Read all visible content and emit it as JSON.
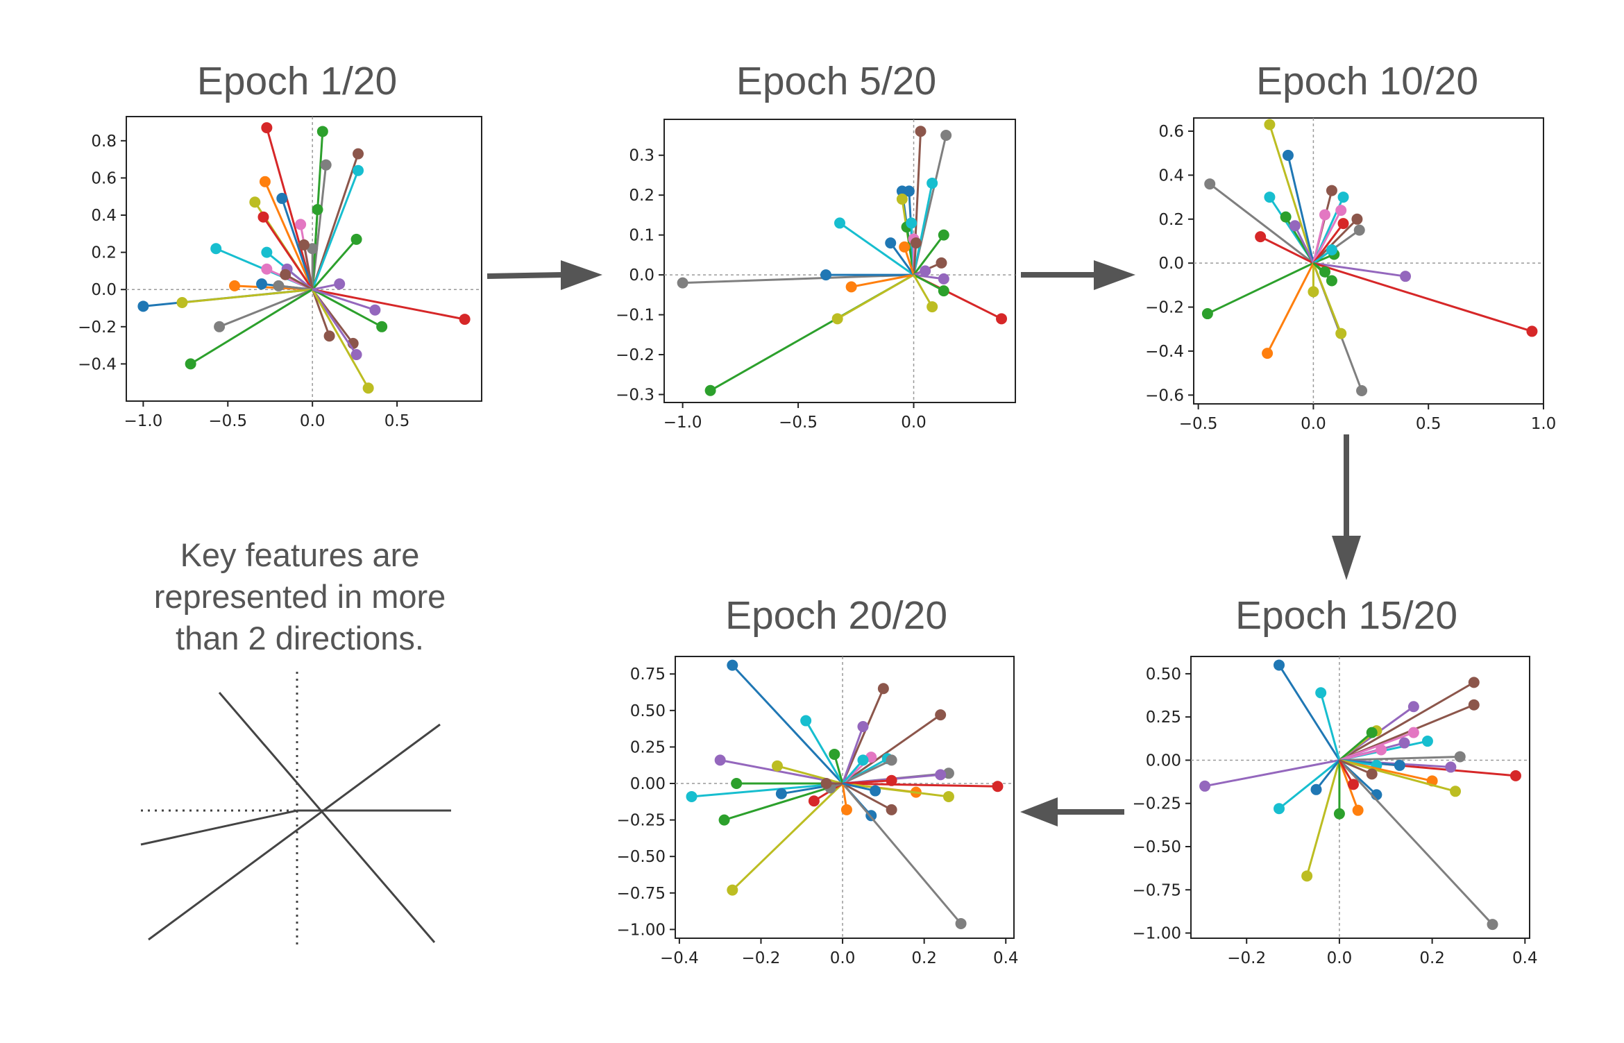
{
  "figure": {
    "arrow_color": "#555555",
    "note_lines": [
      "Key features are",
      "represented in more",
      "than 2 directions."
    ]
  },
  "palette": [
    "#1f77b4",
    "#ff7f0e",
    "#2ca02c",
    "#d62728",
    "#9467bd",
    "#8c564b",
    "#e377c2",
    "#7f7f7f",
    "#bcbd22",
    "#17becf"
  ],
  "chart_data": [
    {
      "type": "scatter",
      "title": "Epoch 1/20",
      "xlim": [
        -1.1,
        1.0
      ],
      "ylim": [
        -0.6,
        0.93
      ],
      "xticks": [
        -1.0,
        -0.5,
        0.0,
        0.5
      ],
      "yticks": [
        -0.4,
        -0.2,
        0.0,
        0.2,
        0.4,
        0.6,
        0.8
      ],
      "ytick_decimals": 1,
      "grid": false,
      "zero_lines": true,
      "vectors": [
        [
          -1.0,
          -0.09,
          0
        ],
        [
          0.9,
          -0.16,
          3
        ],
        [
          -0.27,
          0.87,
          3
        ],
        [
          0.06,
          0.85,
          2
        ],
        [
          0.27,
          0.73,
          5
        ],
        [
          0.08,
          0.67,
          7
        ],
        [
          0.27,
          0.64,
          9
        ],
        [
          -0.28,
          0.58,
          1
        ],
        [
          -0.34,
          0.47,
          8
        ],
        [
          -0.18,
          0.49,
          0
        ],
        [
          -0.29,
          0.39,
          3
        ],
        [
          0.03,
          0.43,
          2
        ],
        [
          -0.07,
          0.35,
          6
        ],
        [
          0.26,
          0.27,
          2
        ],
        [
          -0.57,
          0.22,
          9
        ],
        [
          -0.27,
          0.2,
          9
        ],
        [
          0.0,
          0.22,
          7
        ],
        [
          -0.05,
          0.24,
          5
        ],
        [
          -0.15,
          0.11,
          4
        ],
        [
          -0.27,
          0.11,
          6
        ],
        [
          -0.16,
          0.08,
          5
        ],
        [
          -0.46,
          0.02,
          1
        ],
        [
          -0.3,
          0.03,
          0
        ],
        [
          -0.2,
          0.02,
          7
        ],
        [
          0.16,
          0.03,
          4
        ],
        [
          -0.77,
          -0.07,
          8
        ],
        [
          -0.55,
          -0.2,
          7
        ],
        [
          -0.72,
          -0.4,
          2
        ],
        [
          0.1,
          -0.25,
          5
        ],
        [
          0.24,
          -0.29,
          5
        ],
        [
          0.26,
          -0.35,
          4
        ],
        [
          0.33,
          -0.53,
          8
        ],
        [
          0.41,
          -0.2,
          2
        ],
        [
          0.37,
          -0.11,
          4
        ]
      ]
    },
    {
      "type": "scatter",
      "title": "Epoch 5/20",
      "xlim": [
        -1.08,
        0.44
      ],
      "ylim": [
        -0.32,
        0.39
      ],
      "xticks": [
        -1.0,
        -0.5,
        0.0
      ],
      "yticks": [
        -0.3,
        -0.2,
        -0.1,
        0.0,
        0.1,
        0.2,
        0.3
      ],
      "ytick_decimals": 1,
      "grid": false,
      "zero_lines": true,
      "vectors": [
        [
          -1.0,
          -0.02,
          7
        ],
        [
          -0.88,
          -0.29,
          2
        ],
        [
          -0.38,
          0.0,
          0
        ],
        [
          -0.33,
          -0.11,
          8
        ],
        [
          -0.27,
          -0.03,
          1
        ],
        [
          -0.32,
          0.13,
          9
        ],
        [
          0.38,
          -0.11,
          3
        ],
        [
          0.03,
          0.36,
          5
        ],
        [
          0.14,
          0.35,
          7
        ],
        [
          0.08,
          0.23,
          9
        ],
        [
          -0.05,
          0.21,
          0
        ],
        [
          -0.02,
          0.21,
          0
        ],
        [
          -0.05,
          0.19,
          8
        ],
        [
          -0.03,
          0.12,
          2
        ],
        [
          -0.01,
          0.13,
          9
        ],
        [
          0.0,
          0.09,
          6
        ],
        [
          0.01,
          0.08,
          5
        ],
        [
          -0.1,
          0.08,
          0
        ],
        [
          -0.04,
          0.07,
          1
        ],
        [
          0.13,
          0.1,
          2
        ],
        [
          0.12,
          0.03,
          5
        ],
        [
          0.05,
          0.01,
          4
        ],
        [
          0.13,
          -0.01,
          4
        ],
        [
          0.13,
          -0.04,
          2
        ],
        [
          0.08,
          -0.08,
          8
        ]
      ]
    },
    {
      "type": "scatter",
      "title": "Epoch 10/20",
      "xlim": [
        -0.52,
        1.0
      ],
      "ylim": [
        -0.64,
        0.66
      ],
      "xticks": [
        -0.5,
        0.0,
        0.5,
        1.0
      ],
      "yticks": [
        -0.6,
        -0.4,
        -0.2,
        0.0,
        0.2,
        0.4,
        0.6
      ],
      "ytick_decimals": 1,
      "grid": false,
      "zero_lines": true,
      "vectors": [
        [
          -0.19,
          0.63,
          8
        ],
        [
          -0.11,
          0.49,
          0
        ],
        [
          -0.45,
          0.36,
          7
        ],
        [
          -0.19,
          0.3,
          9
        ],
        [
          -0.23,
          0.12,
          3
        ],
        [
          -0.46,
          -0.23,
          2
        ],
        [
          0.08,
          0.33,
          5
        ],
        [
          0.13,
          0.3,
          9
        ],
        [
          -0.12,
          0.21,
          2
        ],
        [
          -0.08,
          0.17,
          4
        ],
        [
          0.12,
          0.24,
          6
        ],
        [
          0.05,
          0.22,
          6
        ],
        [
          0.19,
          0.2,
          5
        ],
        [
          0.13,
          0.18,
          3
        ],
        [
          0.2,
          0.15,
          7
        ],
        [
          0.09,
          0.04,
          2
        ],
        [
          0.08,
          0.06,
          9
        ],
        [
          0.4,
          -0.06,
          4
        ],
        [
          0.95,
          -0.31,
          3
        ],
        [
          0.21,
          -0.58,
          7
        ],
        [
          0.12,
          -0.32,
          8
        ],
        [
          0.0,
          -0.13,
          8
        ],
        [
          -0.2,
          -0.41,
          1
        ],
        [
          0.08,
          -0.08,
          2
        ],
        [
          0.05,
          -0.04,
          2
        ]
      ]
    },
    {
      "type": "scatter",
      "title": "Epoch 15/20",
      "xlim": [
        -0.32,
        0.41
      ],
      "ylim": [
        -1.03,
        0.6
      ],
      "xticks": [
        -0.2,
        0.0,
        0.2,
        0.4
      ],
      "yticks": [
        -1.0,
        -0.75,
        -0.5,
        -0.25,
        0.0,
        0.25,
        0.5
      ],
      "ytick_decimals": 2,
      "grid": false,
      "zero_lines": true,
      "vectors": [
        [
          -0.13,
          0.55,
          0
        ],
        [
          -0.04,
          0.39,
          9
        ],
        [
          0.29,
          0.45,
          5
        ],
        [
          0.29,
          0.32,
          5
        ],
        [
          0.16,
          0.31,
          4
        ],
        [
          -0.29,
          -0.15,
          4
        ],
        [
          0.08,
          0.17,
          8
        ],
        [
          0.07,
          0.16,
          2
        ],
        [
          0.16,
          0.16,
          6
        ],
        [
          0.19,
          0.11,
          9
        ],
        [
          0.14,
          0.1,
          4
        ],
        [
          0.09,
          0.06,
          6
        ],
        [
          0.26,
          0.02,
          7
        ],
        [
          0.38,
          -0.09,
          3
        ],
        [
          0.24,
          -0.04,
          4
        ],
        [
          0.13,
          -0.03,
          0
        ],
        [
          0.08,
          -0.03,
          9
        ],
        [
          0.2,
          -0.12,
          1
        ],
        [
          0.25,
          -0.18,
          8
        ],
        [
          0.08,
          -0.2,
          0
        ],
        [
          0.33,
          -0.95,
          7
        ],
        [
          -0.13,
          -0.28,
          9
        ],
        [
          -0.07,
          -0.67,
          8
        ],
        [
          0.0,
          -0.31,
          2
        ],
        [
          0.04,
          -0.29,
          1
        ],
        [
          -0.05,
          -0.17,
          0
        ],
        [
          0.03,
          -0.14,
          3
        ],
        [
          0.07,
          -0.08,
          5
        ]
      ]
    },
    {
      "type": "scatter",
      "title": "Epoch 20/20",
      "xlim": [
        -0.41,
        0.42
      ],
      "ylim": [
        -1.06,
        0.87
      ],
      "xticks": [
        -0.4,
        -0.2,
        0.0,
        0.2,
        0.4
      ],
      "yticks": [
        -1.0,
        -0.75,
        -0.5,
        -0.25,
        0.0,
        0.25,
        0.5,
        0.75
      ],
      "ytick_decimals": 2,
      "grid": false,
      "zero_lines": true,
      "vectors": [
        [
          -0.27,
          0.81,
          0
        ],
        [
          -0.09,
          0.43,
          9
        ],
        [
          0.1,
          0.65,
          5
        ],
        [
          0.24,
          0.47,
          5
        ],
        [
          0.05,
          0.39,
          4
        ],
        [
          -0.3,
          0.16,
          4
        ],
        [
          -0.26,
          0.0,
          2
        ],
        [
          -0.16,
          0.12,
          8
        ],
        [
          -0.02,
          0.2,
          2
        ],
        [
          0.11,
          0.17,
          9
        ],
        [
          0.12,
          0.16,
          7
        ],
        [
          0.07,
          0.18,
          6
        ],
        [
          0.05,
          0.16,
          9
        ],
        [
          0.26,
          0.07,
          7
        ],
        [
          0.24,
          0.06,
          4
        ],
        [
          0.38,
          -0.02,
          3
        ],
        [
          0.18,
          -0.06,
          1
        ],
        [
          0.26,
          -0.09,
          8
        ],
        [
          0.12,
          -0.18,
          5
        ],
        [
          0.07,
          -0.22,
          0
        ],
        [
          0.29,
          -0.96,
          7
        ],
        [
          -0.27,
          -0.73,
          8
        ],
        [
          -0.29,
          -0.25,
          2
        ],
        [
          -0.37,
          -0.09,
          9
        ],
        [
          -0.15,
          -0.07,
          0
        ],
        [
          -0.07,
          -0.12,
          3
        ],
        [
          0.01,
          -0.18,
          1
        ],
        [
          0.12,
          0.02,
          3
        ],
        [
          -0.03,
          -0.03,
          7
        ],
        [
          0.08,
          -0.05,
          0
        ],
        [
          -0.04,
          0.0,
          5
        ]
      ]
    }
  ]
}
